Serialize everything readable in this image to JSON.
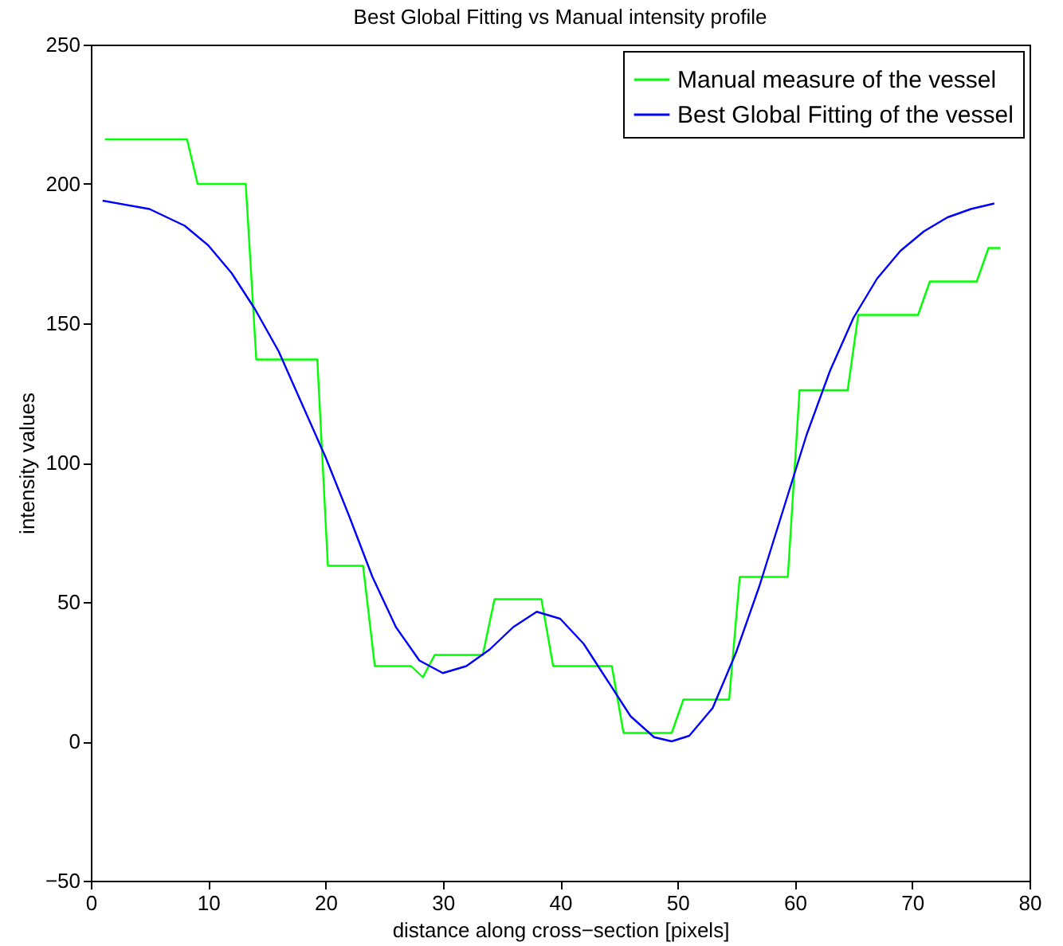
{
  "chart_data": {
    "type": "line",
    "title": "Best Global Fitting vs Manual intensity profile",
    "xlabel": "distance along cross−section [pixels]",
    "ylabel": "intensity values",
    "xlim": [
      0,
      80
    ],
    "xticks": [
      0,
      10,
      20,
      30,
      40,
      50,
      60,
      70,
      80
    ],
    "ylim": [
      -50,
      250
    ],
    "yticks": [
      -50,
      0,
      50,
      100,
      150,
      200,
      250
    ],
    "grid": false,
    "legend": "top right",
    "series": [
      {
        "name": "Manual measure of the vessel",
        "color": "#00ff00",
        "x": [
          1.2,
          8.2,
          9.1,
          13.2,
          14.1,
          19.3,
          20.2,
          23.2,
          24.2,
          27.3,
          28.3,
          29.3,
          33.4,
          34.4,
          38.4,
          39.4,
          44.4,
          45.4,
          49.5,
          50.5,
          54.4,
          55.3,
          59.4,
          60.4,
          64.5,
          65.4,
          70.5,
          71.5,
          75.5,
          76.5,
          77.5
        ],
        "values": [
          216,
          216,
          200,
          200,
          137,
          137,
          63,
          63,
          27,
          27,
          23,
          31,
          31,
          51,
          51,
          27,
          27,
          3,
          3,
          15,
          15,
          59,
          59,
          126,
          126,
          153,
          153,
          165,
          165,
          177,
          177
        ]
      },
      {
        "name": "Best Global Fitting of the vessel",
        "color": "#0000ff",
        "x": [
          1,
          5,
          8,
          10,
          12,
          14,
          16,
          18,
          20,
          22,
          24,
          26,
          28,
          30,
          32,
          34,
          36,
          38,
          40,
          42,
          44,
          46,
          48,
          49.5,
          51,
          53,
          55,
          57,
          59,
          61,
          63,
          65,
          67,
          69,
          71,
          73,
          75,
          77
        ],
        "values": [
          194,
          191,
          185,
          178,
          168,
          155,
          140,
          121,
          102,
          81,
          59,
          41,
          29,
          24.5,
          27,
          33,
          41,
          46.5,
          44,
          35,
          22,
          9,
          1.5,
          0,
          2,
          12,
          32,
          56,
          83,
          110,
          133,
          152,
          166,
          176,
          183,
          188,
          191,
          193
        ]
      }
    ]
  }
}
